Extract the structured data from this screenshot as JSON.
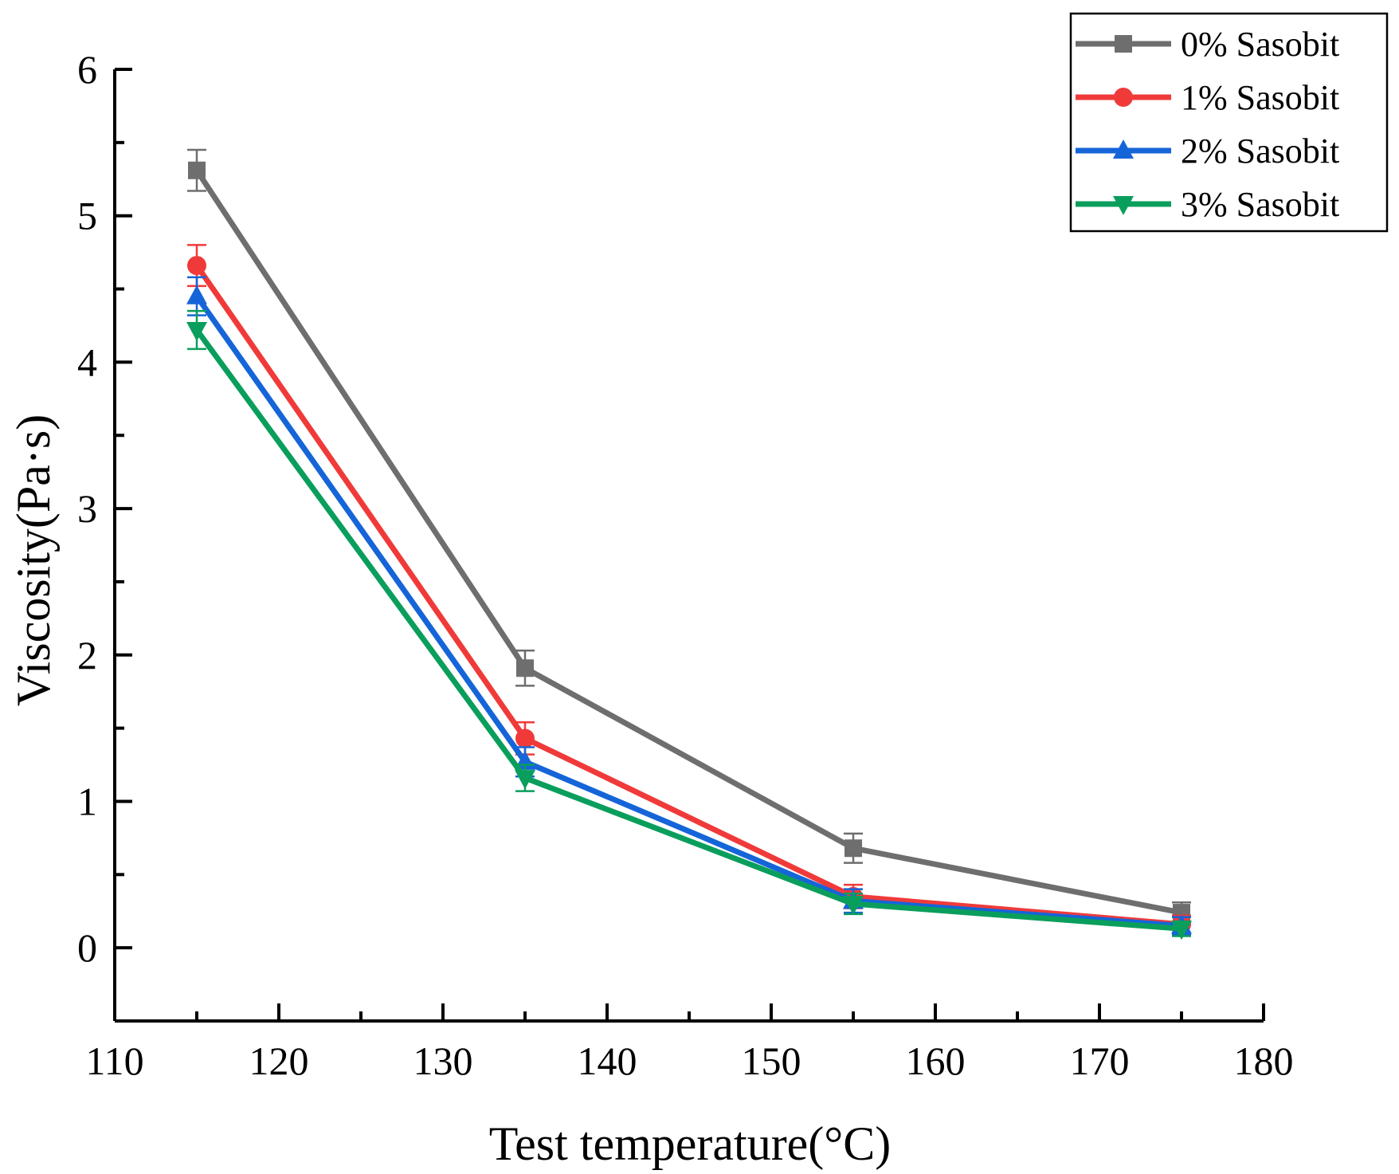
{
  "chart_data": {
    "type": "line",
    "title": "",
    "xlabel": "Test temperature(°C)",
    "ylabel": "Viscosity(Pa·s)",
    "xlim": [
      110,
      180
    ],
    "ylim": [
      -0.5,
      6
    ],
    "xticks": [
      110,
      120,
      130,
      140,
      150,
      160,
      170,
      180
    ],
    "yticks": [
      0,
      1,
      2,
      3,
      4,
      5,
      6
    ],
    "x": [
      115,
      135,
      155,
      175
    ],
    "legend_position": "top-right",
    "grid": false,
    "series": [
      {
        "name": "0% Sasobit",
        "values": [
          5.31,
          1.91,
          0.68,
          0.24
        ],
        "errors": [
          0.14,
          0.12,
          0.1,
          0.07
        ],
        "color": "#6e6e6e",
        "marker": "square"
      },
      {
        "name": "1% Sasobit",
        "values": [
          4.66,
          1.43,
          0.35,
          0.16
        ],
        "errors": [
          0.14,
          0.11,
          0.08,
          0.06
        ],
        "color": "#f03a3a",
        "marker": "circle"
      },
      {
        "name": "2% Sasobit",
        "values": [
          4.45,
          1.27,
          0.32,
          0.15
        ],
        "errors": [
          0.13,
          0.1,
          0.08,
          0.06
        ],
        "color": "#1565d8",
        "marker": "triangle-up"
      },
      {
        "name": "3% Sasobit",
        "values": [
          4.22,
          1.16,
          0.3,
          0.13
        ],
        "errors": [
          0.13,
          0.09,
          0.07,
          0.05
        ],
        "color": "#0a9e5c",
        "marker": "triangle-down"
      }
    ]
  }
}
